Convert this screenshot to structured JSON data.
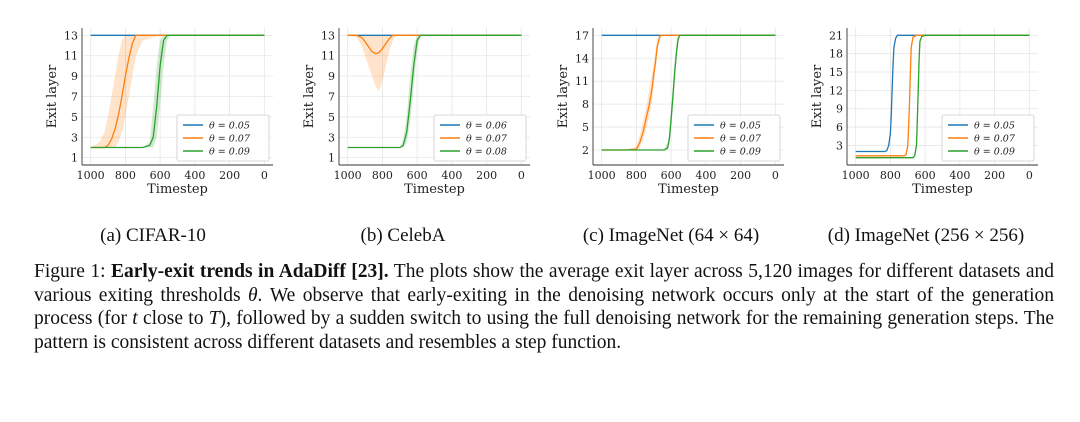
{
  "chart_data": [
    {
      "type": "line",
      "caption": "(a) CIFAR-10",
      "xlabel": "Timestep",
      "ylabel": "Exit layer",
      "xlim": [
        1000,
        0
      ],
      "ylim": [
        1,
        13
      ],
      "xticks": [
        1000,
        800,
        600,
        400,
        200,
        0
      ],
      "yticks": [
        1,
        3,
        5,
        7,
        9,
        11,
        13
      ],
      "grid": true,
      "legend": "bottom-right",
      "series": [
        {
          "name": "θ = 0.05",
          "color": "#1f77b4",
          "x": [
            1000,
            800,
            600,
            400,
            200,
            0
          ],
          "y": [
            13,
            13,
            13,
            13,
            13,
            13
          ]
        },
        {
          "name": "θ = 0.07",
          "color": "#ff7f0e",
          "x": [
            1000,
            950,
            920,
            900,
            880,
            860,
            840,
            820,
            800,
            780,
            760,
            740,
            700,
            600,
            400,
            200,
            0
          ],
          "y": [
            2,
            2,
            2,
            2.2,
            2.8,
            3.8,
            5.2,
            7,
            9,
            10.8,
            12.2,
            13,
            13,
            13,
            13,
            13,
            13
          ],
          "band_low": [
            2,
            2,
            2,
            2,
            2,
            2,
            2.5,
            3.5,
            5,
            7,
            9,
            11,
            12.5,
            13,
            13,
            13,
            13
          ],
          "band_high": [
            2,
            2.5,
            3.5,
            5,
            7,
            9,
            11,
            12.5,
            13,
            13,
            13,
            13,
            13,
            13,
            13,
            13,
            13
          ]
        },
        {
          "name": "θ = 0.09",
          "color": "#2ca02c",
          "x": [
            1000,
            800,
            700,
            660,
            640,
            620,
            600,
            580,
            560,
            540,
            500,
            400,
            200,
            0
          ],
          "y": [
            2,
            2,
            2,
            2.2,
            3,
            6,
            10,
            12.5,
            13,
            13,
            13,
            13,
            13,
            13
          ],
          "band_low": [
            2,
            2,
            2,
            2,
            2,
            3,
            6,
            10,
            12.5,
            13,
            13,
            13,
            13,
            13
          ],
          "band_high": [
            2,
            2,
            2,
            2.5,
            6,
            10,
            12.5,
            13,
            13,
            13,
            13,
            13,
            13,
            13
          ]
        }
      ]
    },
    {
      "type": "line",
      "caption": "(b) CelebA",
      "xlabel": "Timestep",
      "ylabel": "Exit layer",
      "xlim": [
        1000,
        0
      ],
      "ylim": [
        1,
        13
      ],
      "xticks": [
        1000,
        800,
        600,
        400,
        200,
        0
      ],
      "yticks": [
        1,
        3,
        5,
        7,
        9,
        11,
        13
      ],
      "grid": true,
      "legend": "bottom-right",
      "series": [
        {
          "name": "θ = 0.06",
          "color": "#1f77b4",
          "x": [
            1000,
            800,
            600,
            400,
            200,
            0
          ],
          "y": [
            13,
            13,
            13,
            13,
            13,
            13
          ]
        },
        {
          "name": "θ = 0.07",
          "color": "#ff7f0e",
          "x": [
            1000,
            950,
            920,
            900,
            880,
            860,
            840,
            820,
            800,
            780,
            760,
            740,
            720,
            700,
            600,
            400,
            200,
            0
          ],
          "y": [
            13,
            13,
            12.8,
            12.4,
            11.9,
            11.4,
            11.2,
            11.3,
            11.7,
            12.2,
            12.7,
            13,
            13,
            13,
            13,
            13,
            13,
            13
          ],
          "band_low": [
            13,
            12.8,
            12,
            11,
            10,
            9,
            8,
            7.5,
            8.5,
            10,
            11.5,
            12.5,
            13,
            13,
            13,
            13,
            13,
            13
          ],
          "band_high": [
            13,
            13,
            13,
            13,
            13,
            13,
            13,
            13,
            13,
            13,
            13,
            13,
            13,
            13,
            13,
            13,
            13,
            13
          ]
        },
        {
          "name": "θ = 0.08",
          "color": "#2ca02c",
          "x": [
            1000,
            800,
            700,
            680,
            660,
            640,
            620,
            600,
            580,
            560,
            500,
            400,
            200,
            0
          ],
          "y": [
            2,
            2,
            2,
            2.2,
            3.5,
            6.5,
            10,
            12.5,
            13,
            13,
            13,
            13,
            13,
            13
          ],
          "band_low": [
            2,
            2,
            2,
            2,
            2.5,
            4.5,
            8,
            11.5,
            13,
            13,
            13,
            13,
            13,
            13
          ],
          "band_high": [
            2,
            2,
            2,
            2.8,
            5,
            9,
            12,
            13,
            13,
            13,
            13,
            13,
            13,
            13
          ]
        }
      ]
    },
    {
      "type": "line",
      "caption": "(c) ImageNet (64 × 64)",
      "xlabel": "Timestep",
      "ylabel": "Exit layer",
      "xlim": [
        1000,
        0
      ],
      "ylim": [
        1,
        17
      ],
      "xticks": [
        1000,
        800,
        600,
        400,
        200,
        0
      ],
      "yticks": [
        2,
        5,
        8,
        11,
        14,
        17
      ],
      "grid": true,
      "legend": "bottom-right",
      "series": [
        {
          "name": "θ = 0.05",
          "color": "#1f77b4",
          "x": [
            1000,
            800,
            600,
            400,
            200,
            0
          ],
          "y": [
            17,
            17,
            17,
            17,
            17,
            17
          ]
        },
        {
          "name": "θ = 0.07",
          "color": "#ff7f0e",
          "x": [
            1000,
            860,
            800,
            780,
            760,
            740,
            725,
            710,
            700,
            690,
            680,
            670,
            660,
            640,
            600,
            400,
            200,
            0
          ],
          "y": [
            2,
            2,
            2.1,
            3,
            4.5,
            6.5,
            8,
            10,
            12,
            13.5,
            15.5,
            16.5,
            17,
            17,
            17,
            17,
            17,
            17
          ],
          "band_low": [
            2,
            2,
            2,
            2.3,
            3.5,
            5,
            6.5,
            8.5,
            10.5,
            12.5,
            14.5,
            16,
            17,
            17,
            17,
            17,
            17,
            17
          ],
          "band_high": [
            2,
            2,
            2.5,
            4,
            6,
            8,
            10,
            12,
            13.5,
            15,
            16.5,
            17,
            17,
            17,
            17,
            17,
            17,
            17
          ]
        },
        {
          "name": "θ = 0.09",
          "color": "#2ca02c",
          "x": [
            1000,
            700,
            640,
            620,
            610,
            600,
            590,
            580,
            570,
            560,
            550,
            500,
            400,
            200,
            0
          ],
          "y": [
            2,
            2,
            2,
            2.3,
            3.5,
            6,
            9,
            12,
            14.5,
            16.5,
            17,
            17,
            17,
            17,
            17
          ],
          "band_low": [
            2,
            2,
            2,
            2,
            2.8,
            4.5,
            7.5,
            10.5,
            13.5,
            16,
            17,
            17,
            17,
            17,
            17
          ],
          "band_high": [
            2,
            2,
            2.1,
            3,
            4.5,
            7.5,
            10.5,
            13.5,
            16,
            17,
            17,
            17,
            17,
            17,
            17
          ]
        }
      ]
    },
    {
      "type": "line",
      "caption": "(d) ImageNet (256 × 256)",
      "xlabel": "Timestep",
      "ylabel": "Exit layer",
      "xlim": [
        1000,
        0
      ],
      "ylim": [
        1,
        21
      ],
      "xticks": [
        1000,
        800,
        600,
        400,
        200,
        0
      ],
      "yticks": [
        3,
        6,
        9,
        12,
        15,
        18,
        21
      ],
      "grid": true,
      "legend": "bottom-right",
      "series": [
        {
          "name": "θ = 0.05",
          "color": "#1f77b4",
          "x": [
            1000,
            830,
            820,
            810,
            800,
            795,
            790,
            785,
            780,
            770,
            760,
            600,
            400,
            200,
            0
          ],
          "y": [
            2,
            2,
            2.2,
            3,
            5,
            8,
            12,
            16,
            19,
            20.5,
            21,
            21,
            21,
            21,
            21
          ]
        },
        {
          "name": "θ = 0.07",
          "color": "#ff7f0e",
          "x": [
            1000,
            720,
            710,
            700,
            695,
            690,
            685,
            680,
            670,
            650,
            600,
            400,
            200,
            0
          ],
          "y": [
            1.3,
            1.3,
            1.5,
            3,
            6,
            10,
            15,
            19,
            20.7,
            21,
            21,
            21,
            21,
            21
          ]
        },
        {
          "name": "θ = 0.09",
          "color": "#2ca02c",
          "x": [
            1000,
            670,
            660,
            650,
            645,
            640,
            635,
            630,
            620,
            600,
            400,
            200,
            0
          ],
          "y": [
            1,
            1,
            1.3,
            3,
            7,
            12,
            17,
            20,
            20.8,
            21,
            21,
            21,
            21
          ]
        }
      ]
    }
  ],
  "caption": {
    "figure_label": "Figure 1:",
    "bold_title": "Early-exit trends in AdaDiff [23].",
    "text_part1": "The plots show the average exit layer across 5,120 images for different datasets and various exiting thresholds",
    "theta": "θ",
    "text_part2": ". We observe that early-exiting in the denoising network occurs only at the start of the generation process (for",
    "t_var": "t",
    "text_part3": "close to",
    "T_var": "T",
    "text_part4": "), followed by a sudden switch to using the full denoising network for the remaining generation steps. The pattern is consistent across different datasets and resembles a step function."
  }
}
